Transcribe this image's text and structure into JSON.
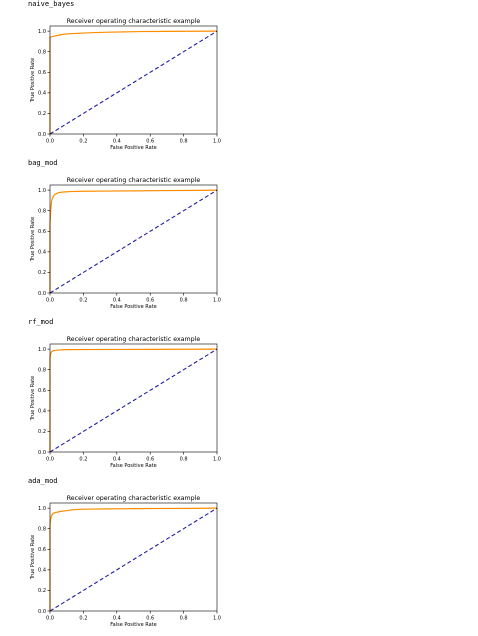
{
  "colors": {
    "roc_line": "#ff8c00",
    "diagonal": "#1f1fa8",
    "axes": "#000000"
  },
  "chart_data": [
    {
      "type": "line",
      "label": "naive_bayes",
      "title": "Receiver operating characteristic example",
      "xlabel": "False Positive Rate",
      "ylabel": "True Positive Rate",
      "xlim": [
        0,
        1
      ],
      "ylim": [
        0,
        1.05
      ],
      "xticks": [
        "0.0",
        "0.2",
        "0.4",
        "0.6",
        "0.8",
        "1.0"
      ],
      "yticks": [
        "0.0",
        "0.2",
        "0.4",
        "0.6",
        "0.8",
        "1.0"
      ],
      "grid": false,
      "series": [
        {
          "style": "solid",
          "color": "#ff8c00",
          "x": [
            0,
            0,
            0.02,
            0.05,
            0.08,
            0.12,
            0.18,
            0.25,
            0.35,
            0.45,
            0.55,
            0.7,
            0.85,
            1.0
          ],
          "y": [
            0,
            0.94,
            0.95,
            0.96,
            0.97,
            0.975,
            0.98,
            0.985,
            0.99,
            0.993,
            0.996,
            0.998,
            0.999,
            1.0
          ]
        },
        {
          "style": "dashed",
          "color": "#1f1fa8",
          "x": [
            0,
            1
          ],
          "y": [
            0,
            1
          ]
        }
      ]
    },
    {
      "type": "line",
      "label": "bag_mod",
      "title": "Receiver operating characteristic example",
      "xlabel": "False Positive Rate",
      "ylabel": "True Positive Rate",
      "xlim": [
        0,
        1
      ],
      "ylim": [
        0,
        1.05
      ],
      "xticks": [
        "0.0",
        "0.2",
        "0.4",
        "0.6",
        "0.8",
        "1.0"
      ],
      "yticks": [
        "0.0",
        "0.2",
        "0.4",
        "0.6",
        "0.8",
        "1.0"
      ],
      "grid": false,
      "series": [
        {
          "style": "solid",
          "color": "#ff8c00",
          "x": [
            0,
            0,
            0.005,
            0.01,
            0.02,
            0.03,
            0.05,
            0.08,
            0.12,
            0.2,
            0.35,
            0.5,
            0.7,
            0.9,
            1.0
          ],
          "y": [
            0,
            0.68,
            0.82,
            0.9,
            0.94,
            0.96,
            0.975,
            0.982,
            0.986,
            0.989,
            0.991,
            0.993,
            0.996,
            0.998,
            1.0
          ]
        },
        {
          "style": "dashed",
          "color": "#1f1fa8",
          "x": [
            0,
            1
          ],
          "y": [
            0,
            1
          ]
        }
      ]
    },
    {
      "type": "line",
      "label": "rf_mod",
      "title": "Receiver operating characteristic example",
      "xlabel": "False Positive Rate",
      "ylabel": "True Positive Rate",
      "xlim": [
        0,
        1
      ],
      "ylim": [
        0,
        1.05
      ],
      "xticks": [
        "0.0",
        "0.2",
        "0.4",
        "0.6",
        "0.8",
        "1.0"
      ],
      "yticks": [
        "0.0",
        "0.2",
        "0.4",
        "0.6",
        "0.8",
        "1.0"
      ],
      "grid": false,
      "series": [
        {
          "style": "solid",
          "color": "#ff8c00",
          "x": [
            0,
            0,
            0.005,
            0.01,
            0.02,
            0.04,
            0.07,
            0.1,
            0.2,
            0.4,
            0.6,
            0.8,
            1.0
          ],
          "y": [
            0,
            0.92,
            0.96,
            0.975,
            0.985,
            0.99,
            0.993,
            0.995,
            0.996,
            0.997,
            0.998,
            0.999,
            1.0
          ]
        },
        {
          "style": "dashed",
          "color": "#1f1fa8",
          "x": [
            0,
            1
          ],
          "y": [
            0,
            1
          ]
        }
      ]
    },
    {
      "type": "line",
      "label": "ada_mod",
      "title": "Receiver operating characteristic example",
      "xlabel": "False Positive Rate",
      "ylabel": "True Positive Rate",
      "xlim": [
        0,
        1
      ],
      "ylim": [
        0,
        1.05
      ],
      "xticks": [
        "0.0",
        "0.2",
        "0.4",
        "0.6",
        "0.8",
        "1.0"
      ],
      "yticks": [
        "0.0",
        "0.2",
        "0.4",
        "0.6",
        "0.8",
        "1.0"
      ],
      "grid": false,
      "series": [
        {
          "style": "solid",
          "color": "#ff8c00",
          "x": [
            0,
            0,
            0.005,
            0.01,
            0.02,
            0.04,
            0.07,
            0.1,
            0.14,
            0.2,
            0.35,
            0.5,
            0.7,
            0.85,
            1.0
          ],
          "y": [
            0,
            0.84,
            0.9,
            0.93,
            0.95,
            0.96,
            0.97,
            0.975,
            0.985,
            0.99,
            0.993,
            0.995,
            0.997,
            0.998,
            1.0
          ]
        },
        {
          "style": "dashed",
          "color": "#1f1fa8",
          "x": [
            0,
            1
          ],
          "y": [
            0,
            1
          ]
        }
      ]
    }
  ]
}
